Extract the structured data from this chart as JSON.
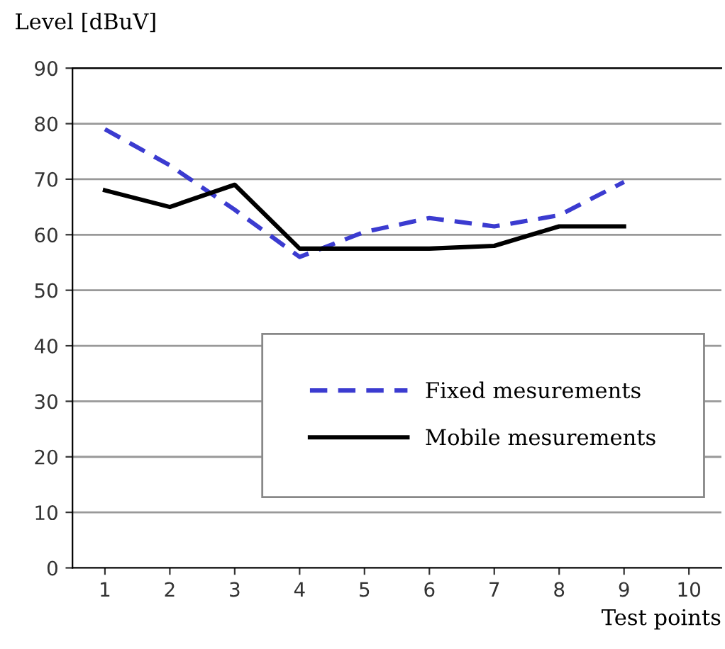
{
  "chart_data": {
    "type": "line",
    "xlabel": "Test points",
    "ylabel": "Level [dBuV]",
    "categories": [
      "1",
      "2",
      "3",
      "4",
      "5",
      "6",
      "7",
      "8",
      "9",
      "10"
    ],
    "series": [
      {
        "name": "Fixed mesurements",
        "color": "#3b3bd0",
        "line_style": "dashed",
        "values": [
          79,
          72.5,
          64.5,
          56,
          60.5,
          63,
          61.5,
          63.5,
          69.5,
          null
        ]
      },
      {
        "name": "Mobile mesurements",
        "color": "#000000",
        "line_style": "solid",
        "values": [
          68,
          65,
          69,
          57.5,
          57.5,
          57.5,
          58,
          61.5,
          61.5,
          null
        ]
      }
    ],
    "ylim": [
      0,
      90
    ],
    "yticks": [
      0,
      10,
      20,
      30,
      40,
      50,
      60,
      70,
      80,
      90
    ],
    "grid": "y",
    "legend": "bottom right",
    "marker": "none"
  }
}
